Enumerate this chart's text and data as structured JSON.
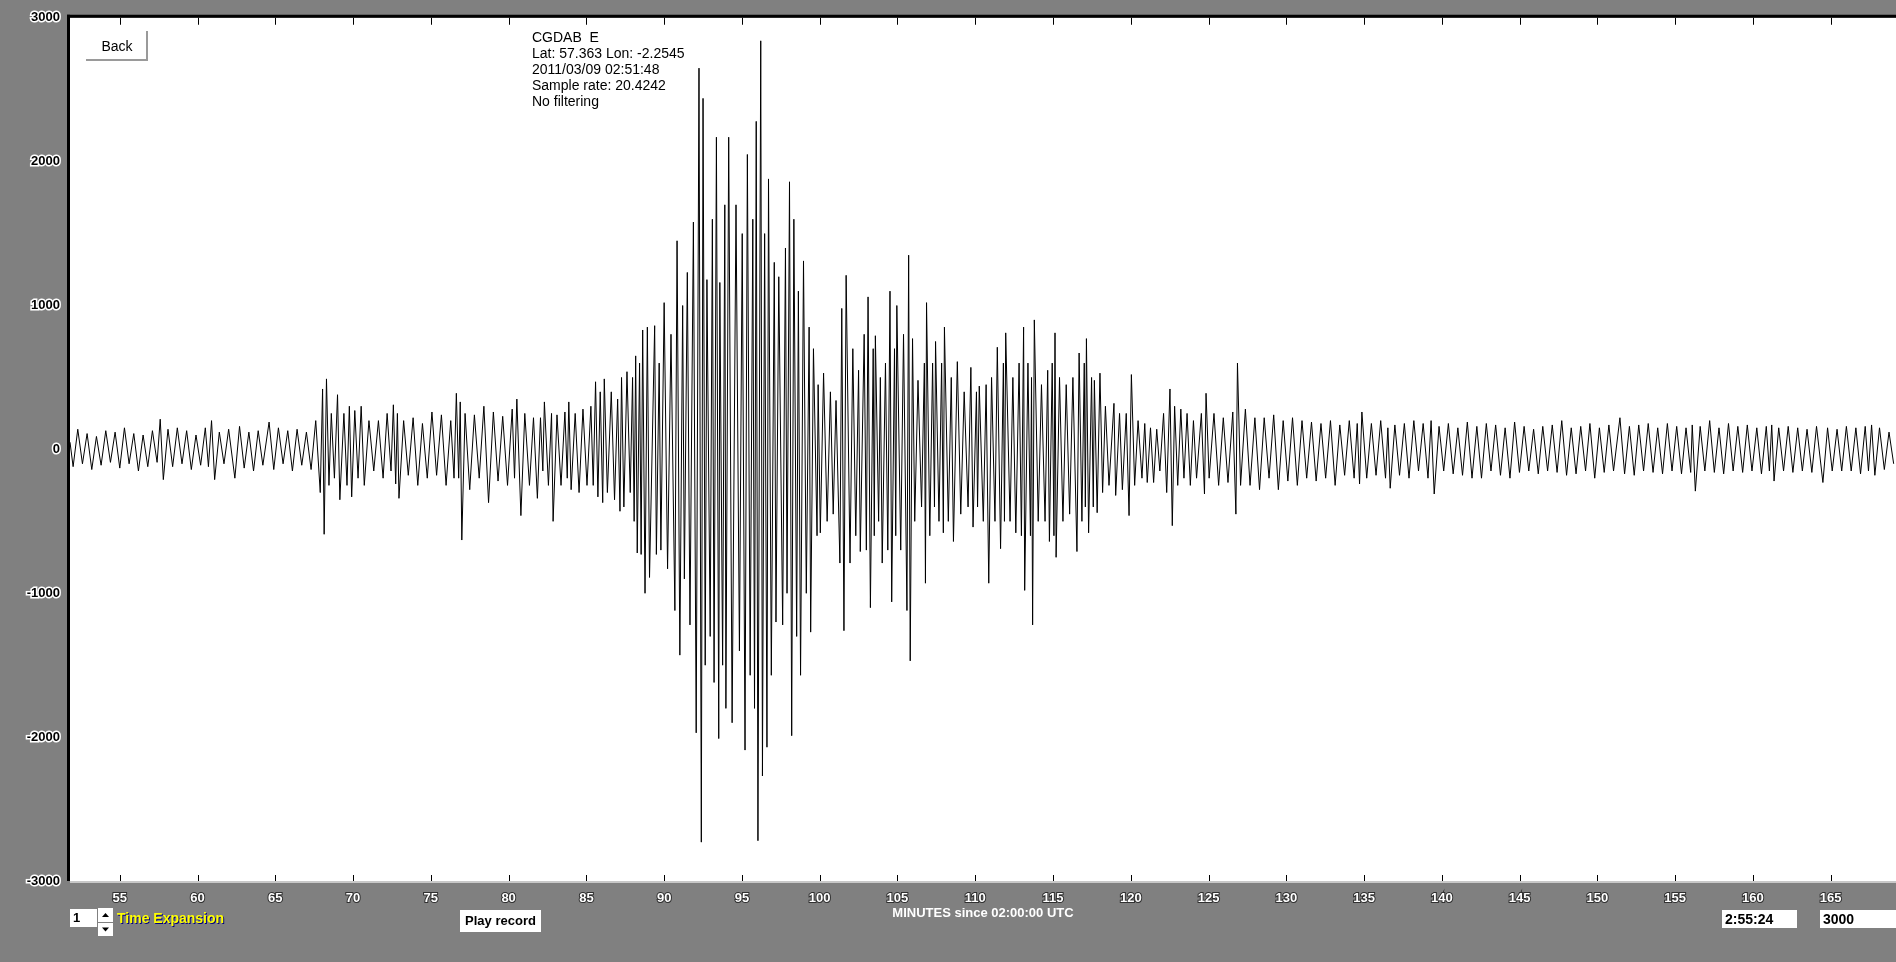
{
  "chart_data": {
    "type": "line",
    "xlabel": "MINUTES since 02:00:00 UTC",
    "annotations": [
      "CGDAB  E",
      "Lat: 57.363 Lon: -2.2545",
      "2011/03/09 02:51:48",
      "Sample rate: 20.4242",
      "No filtering",
      "Back",
      "1",
      "Time Expansion",
      "Play record",
      "2:55:24",
      "3000"
    ],
    "xlim": [
      51.8,
      169.2
    ],
    "ylim": [
      -3000,
      3000
    ],
    "xticks": [
      55,
      60,
      65,
      70,
      75,
      80,
      85,
      90,
      95,
      100,
      105,
      110,
      115,
      120,
      125,
      130,
      135,
      140,
      145,
      150,
      155,
      160,
      165
    ],
    "yticks": [
      -3000,
      -2000,
      -1000,
      0,
      1000,
      2000,
      3000
    ],
    "grid": false,
    "legend": false,
    "marker": "none",
    "line_style": "solid",
    "color": "#000000",
    "x": [
      51.8,
      52.0,
      52.3,
      52.6,
      52.9,
      53.2,
      53.5,
      53.8,
      54.1,
      54.4,
      54.7,
      55.0,
      55.3,
      55.6,
      55.9,
      56.2,
      56.5,
      56.8,
      57.1,
      57.4,
      57.6,
      57.8,
      58.1,
      58.4,
      58.7,
      59.0,
      59.3,
      59.6,
      59.9,
      60.2,
      60.5,
      60.7,
      60.9,
      61.1,
      61.4,
      61.7,
      62.0,
      62.4,
      62.7,
      63.0,
      63.3,
      63.6,
      63.9,
      64.2,
      64.6,
      64.9,
      65.2,
      65.5,
      65.8,
      66.1,
      66.4,
      66.7,
      67.0,
      67.3,
      67.6,
      67.89,
      68.04,
      68.14,
      68.29,
      68.45,
      68.6,
      68.8,
      69.0,
      69.15,
      69.41,
      69.61,
      69.76,
      69.91,
      70.11,
      70.32,
      70.52,
      70.72,
      71.02,
      71.33,
      71.63,
      71.93,
      72.19,
      72.44,
      72.59,
      72.74,
      72.85,
      72.95,
      73.25,
      73.55,
      73.86,
      74.16,
      74.46,
      74.77,
      75.07,
      75.37,
      75.68,
      75.98,
      76.28,
      76.49,
      76.64,
      76.79,
      76.89,
      76.99,
      77.2,
      77.5,
      77.8,
      78.11,
      78.41,
      78.71,
      79.02,
      79.32,
      79.62,
      79.93,
      80.23,
      80.38,
      80.53,
      80.79,
      81.04,
      81.34,
      81.6,
      81.85,
      82.05,
      82.2,
      82.3,
      82.56,
      82.76,
      82.86,
      83.11,
      83.37,
      83.62,
      83.77,
      83.87,
      84.02,
      84.28,
      84.53,
      84.78,
      85.04,
      85.29,
      85.44,
      85.59,
      85.74,
      85.89,
      86.05,
      86.15,
      86.35,
      86.6,
      86.81,
      87.01,
      87.16,
      87.26,
      87.41,
      87.61,
      87.82,
      87.97,
      88.07,
      88.17,
      88.27,
      88.42,
      88.52,
      88.62,
      88.77,
      88.92,
      89.06,
      89.39,
      89.5,
      89.68,
      89.79,
      90.0,
      90.22,
      90.44,
      90.69,
      90.83,
      91.01,
      91.19,
      91.3,
      91.49,
      91.66,
      91.88,
      92.06,
      92.24,
      92.39,
      92.5,
      92.64,
      92.75,
      92.96,
      93.1,
      93.21,
      93.36,
      93.51,
      93.58,
      93.76,
      93.9,
      93.97,
      94.15,
      94.37,
      94.62,
      94.84,
      95.02,
      95.2,
      95.35,
      95.53,
      95.7,
      95.81,
      95.92,
      96.03,
      96.21,
      96.32,
      96.46,
      96.61,
      96.71,
      96.89,
      97.08,
      97.19,
      97.37,
      97.62,
      97.8,
      97.9,
      98.06,
      98.2,
      98.34,
      98.52,
      98.63,
      98.77,
      98.96,
      99.14,
      99.32,
      99.42,
      99.6,
      99.83,
      99.9,
      100.04,
      100.25,
      100.48,
      100.69,
      100.87,
      101.05,
      101.3,
      101.42,
      101.56,
      101.7,
      101.95,
      102.13,
      102.32,
      102.5,
      102.61,
      102.86,
      103.0,
      103.11,
      103.26,
      103.44,
      103.51,
      103.58,
      103.79,
      103.9,
      104.02,
      104.23,
      104.38,
      104.52,
      104.63,
      104.81,
      104.89,
      104.96,
      105.21,
      105.39,
      105.61,
      105.72,
      105.82,
      105.97,
      106.11,
      106.32,
      106.55,
      106.73,
      106.8,
      106.87,
      107.08,
      107.26,
      107.38,
      107.45,
      107.67,
      107.84,
      107.95,
      108.02,
      108.27,
      108.46,
      108.6,
      108.85,
      109.07,
      109.29,
      109.54,
      109.72,
      109.86,
      110.08,
      110.15,
      110.26,
      110.52,
      110.7,
      110.87,
      111.05,
      111.27,
      111.42,
      111.63,
      111.81,
      111.88,
      111.96,
      112.24,
      112.42,
      112.61,
      112.82,
      112.97,
      113.11,
      113.18,
      113.39,
      113.55,
      113.62,
      113.69,
      113.8,
      114.05,
      114.26,
      114.49,
      114.66,
      114.77,
      114.95,
      115.06,
      115.13,
      115.2,
      115.42,
      115.64,
      115.85,
      116.07,
      116.28,
      116.54,
      116.68,
      116.86,
      117.01,
      117.08,
      117.15,
      117.29,
      117.48,
      117.59,
      117.66,
      117.84,
      118.02,
      118.19,
      118.37,
      118.6,
      118.92,
      119.03,
      119.28,
      119.46,
      119.71,
      119.89,
      120.04,
      120.25,
      120.47,
      120.72,
      120.9,
      121.06,
      121.27,
      121.47,
      121.67,
      121.87,
      122.11,
      122.31,
      122.52,
      122.67,
      122.82,
      123.02,
      123.22,
      123.42,
      123.62,
      123.83,
      124.03,
      124.23,
      124.54,
      124.74,
      124.84,
      125.04,
      125.35,
      125.65,
      125.95,
      126.25,
      126.56,
      126.76,
      126.86,
      127.06,
      127.37,
      127.67,
      127.98,
      128.28,
      128.58,
      128.89,
      129.19,
      129.49,
      129.8,
      130.1,
      130.4,
      130.71,
      131.01,
      131.31,
      131.62,
      131.92,
      132.23,
      132.53,
      132.84,
      133.14,
      133.44,
      133.75,
      134.05,
      134.36,
      134.56,
      134.71,
      134.86,
      135.17,
      135.47,
      135.77,
      136.07,
      136.38,
      136.53,
      136.68,
      136.98,
      137.28,
      137.59,
      137.89,
      138.2,
      138.5,
      138.8,
      139.11,
      139.31,
      139.51,
      139.82,
      140.12,
      140.42,
      140.73,
      141.03,
      141.33,
      141.64,
      141.94,
      142.25,
      142.55,
      142.86,
      143.16,
      143.46,
      143.77,
      144.07,
      144.38,
      144.68,
      144.99,
      145.29,
      145.59,
      145.9,
      146.2,
      146.49,
      146.8,
      147.1,
      147.41,
      147.71,
      148.02,
      148.32,
      148.63,
      148.93,
      149.24,
      149.52,
      149.83,
      150.13,
      150.44,
      150.74,
      151.04,
      151.45,
      151.75,
      152.06,
      152.37,
      152.66,
      152.97,
      153.27,
      153.58,
      153.88,
      154.19,
      154.5,
      154.8,
      155.1,
      155.41,
      155.7,
      156.0,
      156.1,
      156.3,
      156.61,
      156.91,
      157.22,
      157.52,
      157.82,
      158.12,
      158.43,
      158.73,
      159.03,
      159.34,
      159.64,
      159.94,
      160.25,
      160.55,
      160.86,
      161.06,
      161.21,
      161.36,
      161.66,
      161.97,
      162.27,
      162.57,
      162.88,
      163.18,
      163.48,
      163.79,
      164.09,
      164.5,
      164.8,
      165.1,
      165.41,
      165.71,
      166.01,
      166.32,
      166.62,
      166.92,
      167.22,
      167.43,
      167.63,
      167.84,
      168.14,
      168.45,
      168.75,
      169.05
    ],
    "values": [
      50,
      -120,
      140,
      -100,
      110,
      -140,
      90,
      -110,
      130,
      -90,
      120,
      -130,
      150,
      -100,
      110,
      -150,
      100,
      -120,
      130,
      -90,
      210,
      -210,
      140,
      -120,
      150,
      -100,
      130,
      -140,
      100,
      -110,
      150,
      -120,
      200,
      -210,
      120,
      -100,
      140,
      -200,
      160,
      -130,
      120,
      -150,
      130,
      -110,
      190,
      -140,
      150,
      -100,
      130,
      -150,
      140,
      -110,
      120,
      -140,
      200,
      -300,
      420,
      -590,
      490,
      -250,
      250,
      -200,
      380,
      -350,
      250,
      -250,
      300,
      -330,
      270,
      -200,
      300,
      -250,
      200,
      -150,
      200,
      -200,
      250,
      -150,
      310,
      -240,
      250,
      -340,
      200,
      -180,
      220,
      -250,
      180,
      -200,
      260,
      -180,
      240,
      -250,
      200,
      -200,
      390,
      -200,
      330,
      -630,
      250,
      -280,
      240,
      -200,
      300,
      -370,
      260,
      -220,
      230,
      -250,
      280,
      -200,
      350,
      -460,
      250,
      -250,
      220,
      -340,
      220,
      -150,
      330,
      -250,
      250,
      -500,
      240,
      -250,
      260,
      -200,
      330,
      -280,
      250,
      -300,
      280,
      -250,
      300,
      -250,
      470,
      -330,
      400,
      -370,
      490,
      -300,
      400,
      -350,
      350,
      -430,
      500,
      -400,
      540,
      -300,
      500,
      -500,
      650,
      -720,
      600,
      -730,
      830,
      -1000,
      850,
      -890,
      860,
      -730,
      600,
      -700,
      1020,
      -830,
      800,
      -1120,
      1450,
      -1430,
      1000,
      -900,
      1230,
      -1220,
      1580,
      -1970,
      2650,
      -2730,
      2440,
      -1500,
      1180,
      -1300,
      1600,
      -1620,
      2170,
      -2010,
      1160,
      -1500,
      1700,
      -1800,
      2170,
      -1900,
      1700,
      -1400,
      1500,
      -2090,
      2050,
      -1570,
      1600,
      -1800,
      2280,
      -2720,
      2840,
      -2270,
      1500,
      -2070,
      1880,
      -1570,
      1300,
      -1200,
      1200,
      -1220,
      1400,
      -1000,
      1860,
      -1990,
      1600,
      -1300,
      1100,
      -1570,
      1310,
      -1000,
      850,
      -1270,
      700,
      -600,
      450,
      -580,
      530,
      -500,
      400,
      -450,
      340,
      -790,
      980,
      -1260,
      1210,
      -790,
      700,
      -600,
      550,
      -710,
      800,
      -700,
      1060,
      -1100,
      700,
      -600,
      790,
      -500,
      500,
      -790,
      600,
      -700,
      1100,
      -1060,
      700,
      -600,
      1000,
      -700,
      800,
      -1120,
      1350,
      -1470,
      770,
      -500,
      480,
      -400,
      600,
      -930,
      1020,
      -600,
      600,
      -400,
      750,
      -500,
      600,
      -580,
      850,
      -500,
      500,
      -640,
      610,
      -450,
      400,
      -400,
      570,
      -540,
      400,
      -400,
      440,
      -500,
      450,
      -930,
      500,
      -500,
      710,
      -690,
      600,
      -500,
      810,
      -500,
      500,
      -580,
      600,
      -600,
      850,
      -980,
      600,
      -600,
      500,
      -1220,
      900,
      -500,
      450,
      -500,
      550,
      -640,
      600,
      -600,
      810,
      -750,
      500,
      -500,
      450,
      -450,
      500,
      -710,
      670,
      -500,
      600,
      -400,
      770,
      -580,
      500,
      -400,
      480,
      -440,
      530,
      -300,
      300,
      -250,
      320,
      -320,
      250,
      -280,
      250,
      -460,
      520,
      -250,
      200,
      -200,
      180,
      -230,
      150,
      -230,
      140,
      -150,
      250,
      -300,
      420,
      -530,
      300,
      -250,
      280,
      -200,
      250,
      -250,
      200,
      -200,
      250,
      -310,
      390,
      -200,
      250,
      -250,
      220,
      -230,
      260,
      -450,
      600,
      -250,
      280,
      -250,
      220,
      -280,
      220,
      -200,
      240,
      -280,
      200,
      -220,
      220,
      -250,
      200,
      -200,
      190,
      -220,
      180,
      -200,
      200,
      -250,
      170,
      -180,
      200,
      -200,
      180,
      -240,
      260,
      -200,
      180,
      -180,
      200,
      -200,
      150,
      -270,
      170,
      -180,
      180,
      -200,
      200,
      -150,
      180,
      -200,
      200,
      -310,
      160,
      -150,
      180,
      -170,
      150,
      -180,
      190,
      -200,
      160,
      -200,
      180,
      -150,
      170,
      -180,
      150,
      -200,
      190,
      -160,
      160,
      -150,
      140,
      -170,
      160,
      -150,
      170,
      -160,
      200,
      -180,
      150,
      -170,
      160,
      -150,
      180,
      -200,
      150,
      -160,
      170,
      -150,
      220,
      -170,
      160,
      -180,
      170,
      -150,
      180,
      -160,
      150,
      -170,
      180,
      -150,
      160,
      -170,
      150,
      -160,
      170,
      -290,
      160,
      -150,
      200,
      -160,
      150,
      -170,
      180,
      -150,
      160,
      -160,
      170,
      -150,
      150,
      -170,
      160,
      -150,
      170,
      -220,
      150,
      -150,
      160,
      -160,
      150,
      -150,
      140,
      -160,
      160,
      -230,
      150,
      -150,
      140,
      -150,
      160,
      -150,
      150,
      -170,
      160,
      -150,
      170,
      -180,
      150,
      -140,
      120,
      -100
    ]
  }
}
